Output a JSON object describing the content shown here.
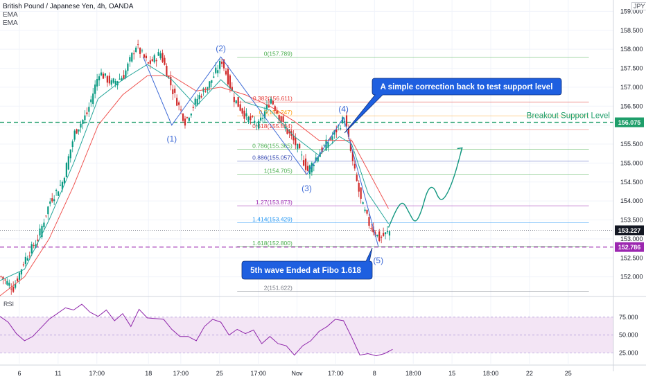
{
  "header": {
    "symbol_line": "British Pound / Japanese Yen, 4h, OANDA",
    "indicator_1": "EMA",
    "indicator_2": "EMA",
    "currency": "JPY"
  },
  "colors": {
    "up": "#089981",
    "down": "#d02a2a",
    "ema_fast": "#26a69a",
    "ema_slow": "#ef5350",
    "wave": "#3d6ad6",
    "breakout": "#1e9e6a",
    "support": "#9c27b0",
    "projection": "#11967f",
    "callout": "#1e5fe0",
    "rsi": "#8e24aa",
    "rsi_band": "#f3e5f5"
  },
  "chart_data": [
    {
      "type": "candlestick",
      "title": "British Pound / Japanese Yen, 4h, OANDA",
      "ylim": [
        151.5,
        159.3
      ],
      "y_ticks": [
        152.0,
        152.5,
        153.0,
        153.5,
        154.0,
        154.5,
        155.0,
        155.5,
        156.0,
        156.5,
        157.0,
        157.5,
        158.0,
        158.5,
        159.0
      ],
      "x_ticks": [
        "6",
        "11",
        "17:00",
        "18",
        "17:00",
        "25",
        "17:00",
        "Nov",
        "17:00",
        "8",
        "18:00",
        "15",
        "18:00",
        "22",
        "25"
      ],
      "close_path": [
        [
          0,
          152.0
        ],
        [
          6,
          151.7
        ],
        [
          12,
          152.5
        ],
        [
          18,
          153.0
        ],
        [
          24,
          154.0
        ],
        [
          30,
          154.5
        ],
        [
          36,
          155.8
        ],
        [
          42,
          156.3
        ],
        [
          48,
          157.4
        ],
        [
          54,
          157.1
        ],
        [
          60,
          157.3
        ],
        [
          66,
          158.1
        ],
        [
          72,
          157.6
        ],
        [
          78,
          157.9
        ],
        [
          84,
          156.9
        ],
        [
          90,
          156.1
        ],
        [
          96,
          156.7
        ],
        [
          102,
          157.1
        ],
        [
          108,
          157.7
        ],
        [
          114,
          156.7
        ],
        [
          120,
          156.2
        ],
        [
          126,
          156.0
        ],
        [
          132,
          156.7
        ],
        [
          138,
          156.0
        ],
        [
          144,
          155.5
        ],
        [
          150,
          154.8
        ],
        [
          156,
          155.3
        ],
        [
          162,
          155.7
        ],
        [
          168,
          156.2
        ],
        [
          172,
          155.0
        ],
        [
          176,
          154.0
        ],
        [
          180,
          153.4
        ],
        [
          185,
          153.0
        ],
        [
          190,
          153.2
        ]
      ],
      "ema_fast_path": [
        [
          0,
          151.9
        ],
        [
          12,
          152.2
        ],
        [
          24,
          153.5
        ],
        [
          36,
          155.0
        ],
        [
          48,
          156.7
        ],
        [
          60,
          157.2
        ],
        [
          72,
          157.6
        ],
        [
          84,
          157.2
        ],
        [
          96,
          156.5
        ],
        [
          108,
          157.2
        ],
        [
          120,
          156.6
        ],
        [
          132,
          156.4
        ],
        [
          144,
          155.7
        ],
        [
          156,
          155.2
        ],
        [
          166,
          155.7
        ],
        [
          172,
          155.5
        ],
        [
          180,
          154.2
        ],
        [
          190,
          153.4
        ]
      ],
      "ema_slow_path": [
        [
          0,
          151.5
        ],
        [
          12,
          152.0
        ],
        [
          24,
          153.0
        ],
        [
          36,
          154.4
        ],
        [
          48,
          156.0
        ],
        [
          60,
          156.8
        ],
        [
          72,
          157.3
        ],
        [
          84,
          157.3
        ],
        [
          96,
          156.9
        ],
        [
          108,
          157.0
        ],
        [
          120,
          156.8
        ],
        [
          132,
          156.5
        ],
        [
          144,
          156.1
        ],
        [
          156,
          155.6
        ],
        [
          166,
          155.6
        ],
        [
          172,
          155.6
        ],
        [
          180,
          154.8
        ],
        [
          190,
          153.8
        ]
      ],
      "current_price": "153.227",
      "breakout_price": "156.075",
      "support_price": "152.786",
      "breakout_label": "Breakout Support Level",
      "wave_labels": [
        "(1)",
        "(2)",
        "(3)",
        "(4)",
        "(5)"
      ],
      "wave_points": [
        {
          "label": "(1)",
          "x": 84,
          "y": 156.0
        },
        {
          "label": "(2)",
          "x": 108,
          "y": 157.8
        },
        {
          "label": "(3)",
          "x": 150,
          "y": 154.7
        },
        {
          "label": "(4)",
          "x": 168,
          "y": 156.2
        },
        {
          "label": "(5)",
          "x": 185,
          "y": 152.8
        }
      ],
      "fib_levels": [
        {
          "label": "0(157.789)",
          "value": 157.789,
          "color": "#4caf50"
        },
        {
          "label": "0.382(156.611)",
          "value": 156.611,
          "color": "#e53935"
        },
        {
          "label": "0.5(156.247)",
          "value": 156.247,
          "color": "#ff9800"
        },
        {
          "label": "0.618(155.884)",
          "value": 155.884,
          "color": "#e53935"
        },
        {
          "label": "0.786(155.365)",
          "value": 155.365,
          "color": "#4caf50"
        },
        {
          "label": "0.886(155.057)",
          "value": 155.057,
          "color": "#3f51b5"
        },
        {
          "label": "1(154.705)",
          "value": 154.705,
          "color": "#4caf50"
        },
        {
          "label": "1.27(153.873)",
          "value": 153.873,
          "color": "#9c27b0"
        },
        {
          "label": "1.414(153.429)",
          "value": 153.429,
          "color": "#2196f3"
        },
        {
          "label": "1.618(152.800)",
          "value": 152.8,
          "color": "#4caf50"
        },
        {
          "label": "2(151.622)",
          "value": 151.622,
          "color": "#787b86"
        }
      ],
      "projection_path": [
        [
          190,
          153.3
        ],
        [
          194,
          153.8
        ],
        [
          197,
          154.0
        ],
        [
          200,
          153.7
        ],
        [
          203,
          153.4
        ],
        [
          206,
          153.7
        ],
        [
          209,
          154.3
        ],
        [
          212,
          154.4
        ],
        [
          215,
          154.0
        ],
        [
          218,
          154.1
        ],
        [
          222,
          154.6
        ],
        [
          226,
          155.4
        ]
      ],
      "callouts": [
        {
          "text": "A simple correction back to test support level"
        },
        {
          "text": "5th wave Ended at Fibo 1.618"
        }
      ]
    },
    {
      "type": "line",
      "title": "RSI",
      "ylim": [
        10,
        100
      ],
      "y_ticks": [
        25.0,
        50.0,
        75.0
      ],
      "band": [
        25,
        75
      ],
      "values": [
        [
          0,
          76
        ],
        [
          4,
          68
        ],
        [
          8,
          52
        ],
        [
          12,
          42
        ],
        [
          16,
          48
        ],
        [
          20,
          60
        ],
        [
          24,
          72
        ],
        [
          28,
          80
        ],
        [
          32,
          88
        ],
        [
          36,
          85
        ],
        [
          40,
          93
        ],
        [
          44,
          82
        ],
        [
          48,
          76
        ],
        [
          52,
          85
        ],
        [
          56,
          70
        ],
        [
          60,
          80
        ],
        [
          64,
          62
        ],
        [
          68,
          86
        ],
        [
          72,
          74
        ],
        [
          76,
          73
        ],
        [
          80,
          72
        ],
        [
          84,
          58
        ],
        [
          88,
          48
        ],
        [
          92,
          48
        ],
        [
          96,
          42
        ],
        [
          100,
          62
        ],
        [
          104,
          72
        ],
        [
          108,
          68
        ],
        [
          112,
          50
        ],
        [
          116,
          58
        ],
        [
          120,
          52
        ],
        [
          124,
          57
        ],
        [
          128,
          38
        ],
        [
          132,
          48
        ],
        [
          136,
          38
        ],
        [
          140,
          35
        ],
        [
          144,
          22
        ],
        [
          148,
          35
        ],
        [
          152,
          42
        ],
        [
          156,
          55
        ],
        [
          160,
          62
        ],
        [
          164,
          72
        ],
        [
          168,
          70
        ],
        [
          172,
          47
        ],
        [
          176,
          22
        ],
        [
          180,
          24
        ],
        [
          184,
          21
        ],
        [
          188,
          24
        ],
        [
          192,
          30
        ]
      ]
    }
  ]
}
